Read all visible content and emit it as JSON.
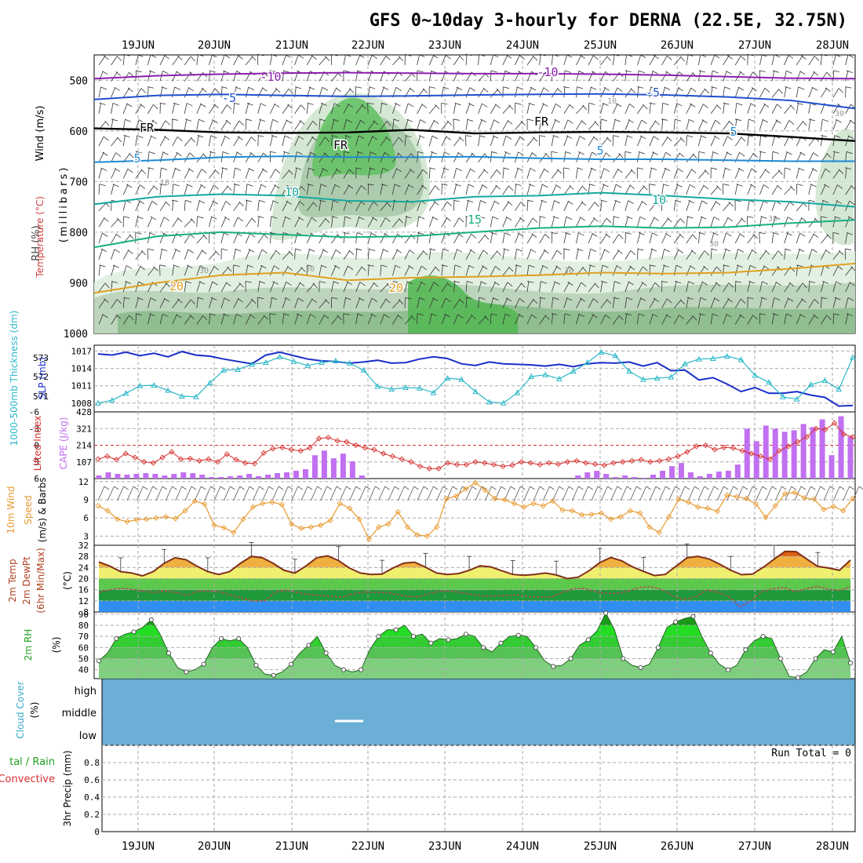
{
  "title": "GFS 0~10day 3-hourly for DERNA (22.5E, 32.75N)",
  "dates": [
    "19JUN",
    "20JUN",
    "21JUN",
    "22JUN",
    "23JUN",
    "24JUN",
    "25JUN",
    "26JUN",
    "27JUN",
    "28JUN"
  ],
  "labels": {
    "wind": "Wind (m/s)",
    "temperature": "Temperature (°C)",
    "rh": "RH (%)",
    "millibars": "(millibars)",
    "thickness": "1000-500mb Thickness (dm)",
    "slp": "SLP (mb)",
    "lifted_index": "Lifted Index",
    "cape": "CAPE (J/kg)",
    "wind10m": "10m Wind",
    "speed": "Speed",
    "barbs_unit": "(m/s) & Barbs",
    "temp2m": "2m Temp",
    "dewpt2m": "2m DewPt",
    "minmax": "(6hr Min/Max)",
    "degc": "(°C)",
    "rh2m": "2m RH",
    "pct": "(%)",
    "cloud_cover": "Cloud Cover",
    "cloud_pct": "(%)",
    "cloud_high": "high",
    "cloud_middle": "middle",
    "cloud_low": "low",
    "precip_total_rain": "tal / Rain",
    "precip_convective": "Convective",
    "precip_3hr": "3hr Precip (mm)",
    "run_total": "Run Total = 0"
  },
  "colors": {
    "grid": "#aaaaaa",
    "slp": "#1a2fc8",
    "thickness": "#2ab8c8",
    "lifted": "#d83030",
    "cape": "#c070f0",
    "wind": "#e89a30",
    "temp_fill": "#f0a040",
    "temp_line": "#803018",
    "dewpt": "#b05050",
    "rh_fill": "#22c022",
    "cloud": "#6baed6",
    "iso_m10": "#8a1fb0",
    "iso_m5": "#2050d0",
    "iso_fr": "#000000",
    "iso_5": "#1e8ad6",
    "iso_10": "#16a8a0",
    "iso_15": "#18b080",
    "iso_20": "#e0a020"
  },
  "chart_data": [
    {
      "type": "line",
      "panel": "upper-air",
      "y_axis": "pressure (millibars)",
      "y_ticks": [
        500,
        600,
        700,
        800,
        900,
        1000
      ],
      "ylim": [
        1000,
        450
      ],
      "isotherm_labels": [
        "-10",
        "-10",
        "-5",
        "-5",
        "FR",
        "FR",
        "FR",
        "5",
        "5",
        "5",
        "10",
        "10",
        "15",
        "20",
        "20"
      ],
      "rh_contour_labels": [
        "10",
        "10",
        "30",
        "30",
        "30",
        "30",
        "30",
        "30"
      ],
      "series": [
        {
          "name": "-10",
          "pressure": [
            497,
            491,
            488,
            486,
            485,
            486,
            487,
            487,
            488,
            490,
            493,
            496,
            497
          ]
        },
        {
          "name": "-5",
          "pressure": [
            538,
            530,
            528,
            530,
            532,
            531,
            529,
            528,
            527,
            529,
            533,
            540,
            556
          ]
        },
        {
          "name": "FR",
          "pressure": [
            595,
            598,
            603,
            604,
            603,
            598,
            605,
            603,
            602,
            603,
            605,
            612,
            620
          ]
        },
        {
          "name": "5",
          "pressure": [
            662,
            658,
            652,
            650,
            652,
            652,
            651,
            654,
            656,
            656,
            658,
            660,
            660
          ]
        },
        {
          "name": "10",
          "pressure": [
            745,
            730,
            725,
            728,
            738,
            740,
            730,
            728,
            722,
            728,
            735,
            740,
            750
          ]
        },
        {
          "name": "15",
          "pressure": [
            830,
            808,
            800,
            805,
            810,
            808,
            800,
            792,
            788,
            792,
            790,
            782,
            776
          ]
        },
        {
          "name": "20",
          "pressure": [
            920,
            900,
            885,
            880,
            895,
            890,
            888,
            885,
            880,
            882,
            880,
            872,
            862
          ]
        }
      ]
    },
    {
      "type": "line",
      "panel": "thickness-slp",
      "slp_ticks": [
        1008,
        1011,
        1014,
        1017
      ],
      "thickness_ticks": [
        571,
        572,
        573
      ],
      "ylim": [
        1006.5,
        1018
      ],
      "series": [
        {
          "name": "SLP (mb)",
          "values": [
            1016.5,
            1016.3,
            1016.8,
            1016.2,
            1016.6,
            1016.0,
            1016.9,
            1016.3,
            1016.1,
            1015.6,
            1015.2,
            1014.8,
            1016.3,
            1016.8,
            1016.2,
            1015.6,
            1015.3,
            1015.2,
            1014.9,
            1015.1,
            1015.4,
            1014.9,
            1015.0,
            1015.6,
            1016.0,
            1015.7,
            1014.8,
            1014.5,
            1015.1,
            1014.8,
            1014.7,
            1014.6,
            1014.4,
            1014.7,
            1014.3,
            1014.8,
            1015.0,
            1014.9,
            1015.1,
            1014.4,
            1015.0,
            1013.6,
            1013.7,
            1012.0,
            1012.4,
            1011.3,
            1010.0,
            1010.7,
            1009.7,
            1009.7,
            1010.0,
            1009.4,
            1009.0,
            1007.5,
            1007.6
          ]
        },
        {
          "name": "1000-500mb Thickness (dm)",
          "values": [
            1008,
            1008.5,
            1009.7,
            1011,
            1011.1,
            1010.2,
            1009.2,
            1009.1,
            1011.5,
            1013.7,
            1013.8,
            1014.7,
            1015.0,
            1016.0,
            1015.2,
            1014.5,
            1015.0,
            1015.3,
            1014.9,
            1013.7,
            1010.9,
            1010.4,
            1010.7,
            1010.6,
            1009.8,
            1012.3,
            1012.1,
            1010.0,
            1008.2,
            1008.0,
            1009.8,
            1012.6,
            1012.9,
            1012.2,
            1013.5,
            1015.0,
            1016.8,
            1016.2,
            1013.5,
            1012.1,
            1012.3,
            1012.5,
            1014.8,
            1015.6,
            1015.7,
            1016.1,
            1015.5,
            1012.8,
            1011.6,
            1009.1,
            1008.7,
            1011.2,
            1011.9,
            1010.4,
            1015.9
          ]
        }
      ]
    },
    {
      "type": "bar",
      "panel": "cape-lifted-index",
      "cape_ticks": [
        107,
        214,
        321,
        428
      ],
      "lifted_ticks": [
        -6,
        -3,
        0,
        3,
        6
      ],
      "series": [
        {
          "name": "CAPE (J/kg)",
          "values": [
            20,
            40,
            30,
            25,
            30,
            35,
            30,
            20,
            30,
            40,
            35,
            25,
            10,
            10,
            15,
            20,
            30,
            15,
            25,
            35,
            40,
            50,
            60,
            150,
            180,
            130,
            160,
            110,
            20,
            0,
            0,
            0,
            0,
            0,
            0,
            0,
            0,
            0,
            0,
            0,
            0,
            0,
            0,
            0,
            0,
            0,
            0,
            0,
            0,
            0,
            0,
            20,
            40,
            50,
            30,
            10,
            20,
            10,
            5,
            25,
            50,
            80,
            100,
            40,
            15,
            30,
            45,
            50,
            90,
            320,
            240,
            340,
            320,
            300,
            310,
            350,
            330,
            380,
            150,
            400,
            270
          ]
        },
        {
          "name": "Lifted Index",
          "values": [
            2.5,
            2.0,
            2.6,
            1.5,
            2.2,
            3.0,
            3.2,
            2.2,
            1.2,
            2.5,
            2.4,
            2.8,
            2.5,
            3.0,
            1.6,
            2.6,
            3.2,
            3.3,
            1.4,
            0.6,
            0.4,
            0.8,
            1.0,
            0.5,
            -1.2,
            -1.4,
            -0.8,
            -0.6,
            0.0,
            0.5,
            0.8,
            1.5,
            2.0,
            2.5,
            3.0,
            3.8,
            4.2,
            4.2,
            3.2,
            3.5,
            3.5,
            3.0,
            3.2,
            3.5,
            3.8,
            3.6,
            3.0,
            3.2,
            3.5,
            3.2,
            3.4,
            3.0,
            2.8,
            3.2,
            3.4,
            3.6,
            3.2,
            3.0,
            2.8,
            2.6,
            3.0,
            2.8,
            2.5,
            2.0,
            1.2,
            0.2,
            0.0,
            0.8,
            0.4,
            0.5,
            1.0,
            1.5,
            2.0,
            2.5,
            1.0,
            0.2,
            -0.6,
            -1.5,
            -3.0,
            -2.8,
            -4.0,
            -2.0,
            -1.5
          ]
        }
      ]
    },
    {
      "type": "line",
      "panel": "10m-wind",
      "yticks": [
        3,
        6,
        9,
        12
      ],
      "ylim": [
        1.5,
        12.5
      ],
      "series": [
        {
          "name": "Speed",
          "values": [
            8.0,
            7.2,
            5.8,
            5.4,
            5.7,
            5.8,
            6.0,
            6.2,
            5.9,
            7.2,
            8.8,
            8.3,
            4.8,
            4.4,
            3.6,
            5.8,
            7.8,
            8.4,
            8.6,
            8.2,
            5.0,
            4.3,
            4.5,
            4.8,
            5.6,
            8.4,
            7.6,
            5.8,
            2.5,
            4.5,
            5.0,
            7.0,
            4.5,
            3.2,
            3.0,
            4.5,
            9.2,
            9.6,
            10.8,
            11.8,
            10.6,
            9.2,
            9.0,
            8.4,
            7.8,
            8.4,
            8.0,
            8.8,
            7.3,
            7.2,
            6.5,
            6.6,
            6.8,
            5.8,
            6.2,
            7.2,
            6.8,
            4.5,
            3.6,
            6.2,
            9.1,
            8.6,
            7.8,
            7.6,
            7.1,
            9.8,
            9.5,
            9.2,
            8.3,
            6.1,
            8.0,
            10.0,
            10.2,
            9.3,
            9.1,
            7.4,
            7.9,
            7.2,
            9.2
          ]
        }
      ]
    },
    {
      "type": "area",
      "panel": "2m-temp-dewpt",
      "yticks": [
        8,
        12,
        16,
        20,
        24,
        28,
        32
      ],
      "ylim": [
        8,
        32
      ],
      "series": [
        {
          "name": "2m Temp",
          "values": [
            26,
            24.5,
            22.5,
            22,
            21,
            22.5,
            25.5,
            27.5,
            26.8,
            24.5,
            22.5,
            21.5,
            22.5,
            25.5,
            28.0,
            27.5,
            25.5,
            23.0,
            22.0,
            24.5,
            27.5,
            28.2,
            26.5,
            23.8,
            22.0,
            21.5,
            21.6,
            23.8,
            25.6,
            25.9,
            24.1,
            22.0,
            21.5,
            21.8,
            23.0,
            24.6,
            24.2,
            22.8,
            21.5,
            21.2,
            21.5,
            22.0,
            21.3,
            20.0,
            20.5,
            22.8,
            25.8,
            27.6,
            26.4,
            24.2,
            22.6,
            21.1,
            21.5,
            24.5,
            27.5,
            28.0,
            27.1,
            25.2,
            23.0,
            21.4,
            21.6,
            24.1,
            27.0,
            29.8,
            29.7,
            27.0,
            24.4,
            23.8,
            23.0,
            26.7
          ]
        },
        {
          "name": "2m DewPt",
          "values": [
            15,
            16,
            16.5,
            16.2,
            15.5,
            15,
            15.5,
            15,
            14,
            15.5,
            15.5,
            15.2,
            14,
            13,
            11.8,
            12,
            15.2,
            15.8,
            15.0,
            14.2,
            14,
            13.6,
            13.3,
            14.5,
            15.2,
            15.0,
            15.0,
            14.2,
            13.6,
            13.5,
            14.8,
            15.5,
            15.4,
            14.8,
            14.2,
            13.6,
            13.8,
            14.0,
            14.1,
            13.5,
            13.3,
            13.4,
            15.2,
            16.4,
            16.5,
            15.2,
            14.6,
            14.8,
            15.6,
            16.9,
            17.0,
            16.0,
            13.6,
            12.5,
            13.5,
            15.9,
            15.1,
            13.5,
            9.8,
            12.0,
            15.3,
            16.4,
            16.8,
            15.2,
            16.4,
            17.2,
            16.2,
            15.8,
            17.0
          ]
        }
      ]
    },
    {
      "type": "area",
      "panel": "2m-rh",
      "yticks": [
        40,
        50,
        60,
        70,
        80,
        90
      ],
      "ylim": [
        32,
        92
      ],
      "series": [
        {
          "name": "2m RH",
          "values": [
            48,
            55,
            68,
            72,
            74,
            78,
            85,
            72,
            55,
            42,
            38,
            40,
            45,
            60,
            68,
            66,
            68,
            60,
            44,
            36,
            35,
            38,
            45,
            55,
            62,
            70,
            55,
            44,
            40,
            38,
            40,
            58,
            70,
            76,
            76,
            80,
            70,
            72,
            64,
            68,
            67,
            68,
            72,
            70,
            60,
            56,
            64,
            70,
            71,
            70,
            60,
            48,
            43,
            44,
            50,
            62,
            67,
            75,
            91,
            76,
            50,
            44,
            42,
            45,
            60,
            78,
            83,
            86,
            88,
            70,
            55,
            45,
            40,
            44,
            58,
            66,
            70,
            68,
            50,
            34,
            33,
            38,
            50,
            58,
            56,
            70,
            46
          ]
        }
      ]
    },
    {
      "type": "area",
      "panel": "cloud-cover",
      "yticks": [
        "high",
        "middle",
        "low"
      ]
    },
    {
      "type": "bar",
      "panel": "3hr-precip",
      "yticks": [
        0,
        0.2,
        0.4,
        0.6,
        0.8
      ],
      "ylim": [
        0,
        1.0
      ],
      "series": [
        {
          "name": "3hr Precip (mm)",
          "values": [
            0,
            0,
            0,
            0,
            0,
            0,
            0,
            0,
            0,
            0
          ]
        }
      ]
    }
  ]
}
